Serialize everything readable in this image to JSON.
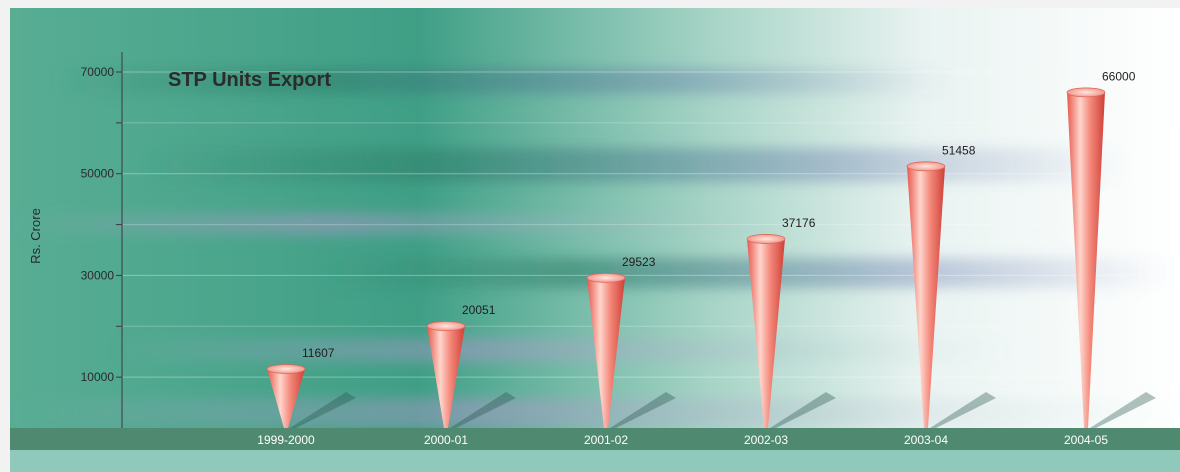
{
  "chart_data": {
    "type": "bar",
    "title": "STP Units Export",
    "xlabel": "",
    "ylabel": "Rs. Crore",
    "categories": [
      "1999-2000",
      "2000-01",
      "2001-02",
      "2002-03",
      "2003-04",
      "2004-05"
    ],
    "values": [
      11607,
      20051,
      29523,
      37176,
      51458,
      66000
    ],
    "value_labels": [
      "11607",
      "20051",
      "29523",
      "37176",
      "51458",
      "66000"
    ],
    "ylim": [
      0,
      70000
    ],
    "yticks_labeled": [
      10000,
      30000,
      50000,
      70000
    ],
    "ytick_labels": [
      "10000",
      "30000",
      "50000",
      "70000"
    ],
    "yticks_minor": [
      20000,
      40000,
      60000
    ],
    "grid": true,
    "legend": "none",
    "bar_shape": "cone",
    "colors": {
      "bar_light": "#ffd2c6",
      "bar_mid": "#f27a6c",
      "bar_dark": "#d9473d",
      "axis_band": "#4f8a70",
      "background_teal": "#3f9f86",
      "background_light": "#f3f6f6",
      "accent_purple": "#a98fc4"
    }
  }
}
